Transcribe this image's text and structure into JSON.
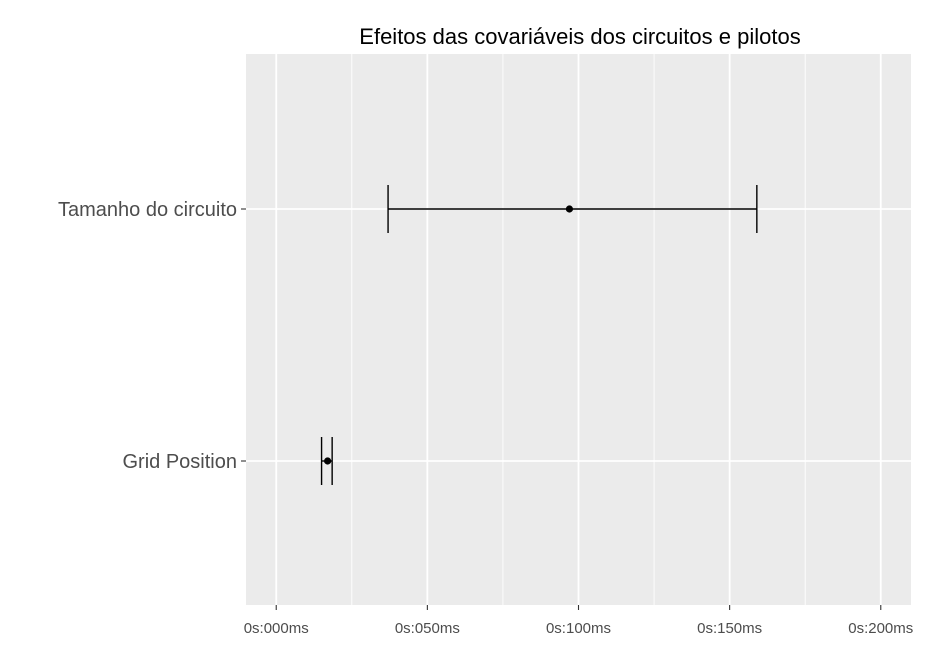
{
  "chart_data": {
    "type": "errorbar",
    "title": "Efeitos das covariáveis dos circuitos e pilotos",
    "xlabel": "",
    "ylabel": "",
    "x_unit": "ms",
    "xlim": [
      -10,
      210
    ],
    "x_ticks": [
      0,
      50,
      100,
      150,
      200
    ],
    "x_tick_labels": [
      "0s:000ms",
      "0s:050ms",
      "0s:100ms",
      "0s:150ms",
      "0s:200ms"
    ],
    "categories": [
      "Tamanho do circuito",
      "Grid Position"
    ],
    "points": [
      {
        "category": "Tamanho do circuito",
        "estimate": 97,
        "lower": 37,
        "upper": 159
      },
      {
        "category": "Grid Position",
        "estimate": 17,
        "lower": 15,
        "upper": 18.5
      }
    ],
    "grid": true,
    "panel_background": "#ebebeb",
    "grid_color": "#ffffff",
    "mark_color": "#000000"
  }
}
